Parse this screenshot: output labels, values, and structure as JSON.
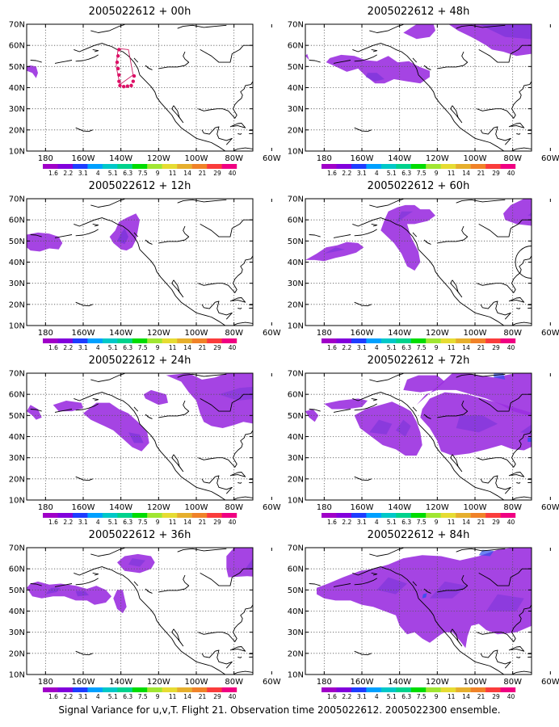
{
  "caption": "Signal Variance for u,v,T. Flight 21. Observation time 2005022612. 2005022300 ensemble.",
  "axes": {
    "lat_ticks": [
      "70N",
      "60N",
      "50N",
      "40N",
      "30N",
      "20N",
      "10N"
    ],
    "lon_ticks": [
      "180",
      "160W",
      "140W",
      "120W",
      "100W",
      "80W",
      "60W"
    ]
  },
  "colorbar": {
    "labels": [
      "1.6",
      "2.2",
      "3.1",
      "4",
      "5.1",
      "6.3",
      "7.5",
      "9",
      "11",
      "14",
      "21",
      "29",
      "40"
    ],
    "colors": [
      "#a000c8",
      "#8200dc",
      "#1e3cff",
      "#00a0ff",
      "#00c8c8",
      "#00d28c",
      "#00dc00",
      "#a0e632",
      "#e6dc32",
      "#e6af2d",
      "#f08228",
      "#fa3c3c",
      "#f00082"
    ]
  },
  "shade_colors": {
    "base": "#9b30e0",
    "dark": "#7030d8",
    "blue": "#3050ee",
    "outline": "#cc2266"
  },
  "panels": [
    {
      "title": "2005022612 + 00h",
      "forecast_hour": 0
    },
    {
      "title": "2005022612 + 48h",
      "forecast_hour": 48
    },
    {
      "title": "2005022612 + 12h",
      "forecast_hour": 12
    },
    {
      "title": "2005022612 + 60h",
      "forecast_hour": 60
    },
    {
      "title": "2005022612 + 24h",
      "forecast_hour": 24
    },
    {
      "title": "2005022612 + 72h",
      "forecast_hour": 72
    },
    {
      "title": "2005022612 + 36h",
      "forecast_hour": 36
    },
    {
      "title": "2005022612 + 84h",
      "forecast_hour": 84
    }
  ]
}
